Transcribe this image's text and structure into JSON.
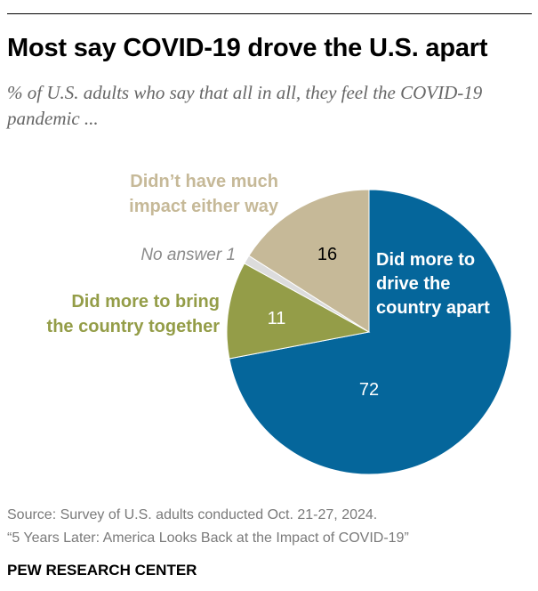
{
  "title": "Most say COVID-19 drove the U.S. apart",
  "subtitle": "% of U.S. adults who say that all in all, they feel the COVID-19 pandemic ...",
  "chart_data": {
    "type": "pie",
    "title": "Most say COVID-19 drove the U.S. apart",
    "subtitle": "% of U.S. adults who say that all in all, they feel the COVID-19 pandemic ...",
    "unit": "%",
    "slices": [
      {
        "key": "apart",
        "label_lines": [
          "Did more to",
          "drive the",
          "country apart"
        ],
        "value": 72,
        "value_label": "72",
        "color": "#05669b",
        "label_color": "#ffffff",
        "value_color": "#ffffff"
      },
      {
        "key": "together",
        "label_lines": [
          "Did more to bring",
          "the country together"
        ],
        "value": 11,
        "value_label": "11",
        "color": "#949d48",
        "label_color": "#949d48",
        "value_color": "#ffffff"
      },
      {
        "key": "no-answer",
        "label_lines": [
          "No answer 1"
        ],
        "value": 1,
        "value_label": "",
        "color": "#dcdcdc",
        "label_color": "#8a8a8a",
        "value_color": "#ffffff"
      },
      {
        "key": "no-impact",
        "label_lines": [
          "Didn’t have much",
          "impact either way"
        ],
        "value": 16,
        "value_label": "16",
        "color": "#c6b998",
        "label_color": "#c6b998",
        "value_color": "#000000"
      }
    ]
  },
  "footer": {
    "source": "Source: Survey of U.S. adults conducted Oct. 21-27, 2024.",
    "report": "“5 Years Later: America Looks Back at the Impact of COVID-19”",
    "brand": "PEW RESEARCH CENTER"
  }
}
